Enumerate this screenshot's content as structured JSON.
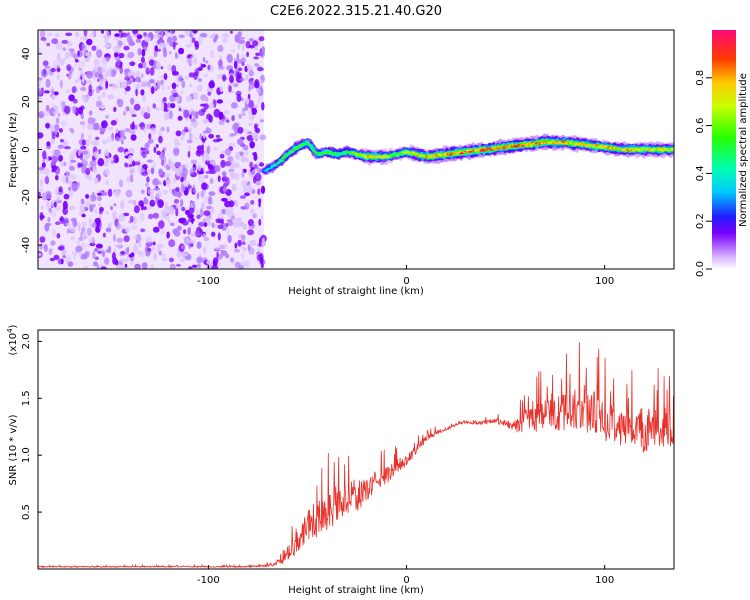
{
  "chart_data": [
    {
      "type": "heatmap",
      "title": "C2E6.2022.315.21.40.G20",
      "xlabel": "Height of straight line (km)",
      "ylabel": "Frequency (Hz)",
      "xlim": [
        -186,
        135
      ],
      "ylim": [
        -50,
        50
      ],
      "xticks": [
        -100,
        0,
        100
      ],
      "yticks": [
        -40,
        -20,
        0,
        20,
        40
      ],
      "colorbar": {
        "label": "Normalized spectral amplitude",
        "range": [
          0.0,
          1.0
        ],
        "ticks": [
          0.0,
          0.2,
          0.4,
          0.6,
          0.8
        ]
      },
      "noise_region_x": [
        -186,
        -72
      ],
      "ridge": {
        "x": [
          -72,
          -65,
          -60,
          -55,
          -50,
          -45,
          -40,
          -35,
          -30,
          -25,
          -20,
          -15,
          -10,
          -5,
          0,
          5,
          10,
          20,
          30,
          40,
          50,
          60,
          70,
          80,
          90,
          100,
          110,
          120,
          135
        ],
        "freq": [
          -9,
          -6,
          -2,
          1,
          3,
          -2,
          -1,
          -2,
          -1,
          -2,
          -3,
          -3,
          -3,
          -2,
          -1,
          -2,
          -3,
          -2,
          -1,
          0,
          1,
          2,
          3,
          3,
          2,
          1,
          0,
          0,
          0
        ],
        "amplitude": [
          0.3,
          0.45,
          0.55,
          0.6,
          0.5,
          0.55,
          0.6,
          0.55,
          0.5,
          0.65,
          0.75,
          0.8,
          0.7,
          0.6,
          0.7,
          0.75,
          0.8,
          0.85,
          0.9,
          0.9,
          0.85,
          0.9,
          0.85,
          0.8,
          0.75,
          0.8,
          0.8,
          0.75,
          0.7
        ]
      }
    },
    {
      "type": "line",
      "xlabel": "Height of straight line (km)",
      "ylabel": "SNR (10 * v/v)",
      "y_multiplier": "(x10",
      "y_multiplier_exp": "4",
      "y_multiplier_close": ")",
      "xlim": [
        -186,
        135
      ],
      "ylim": [
        0,
        2.1
      ],
      "xticks": [
        -100,
        0,
        100
      ],
      "yticks": [
        0.5,
        1.0,
        1.5,
        2.0
      ],
      "color": "#e8312a",
      "series": [
        {
          "x": [
            -186,
            -150,
            -100,
            -80,
            -70,
            -65,
            -60,
            -55,
            -50,
            -45,
            -40,
            -35,
            -30,
            -25,
            -20,
            -15,
            -10,
            -5,
            0,
            5,
            10,
            15,
            20,
            25,
            30,
            35,
            40,
            45,
            50,
            55,
            60,
            65,
            70,
            75,
            80,
            85,
            90,
            95,
            100,
            105,
            110,
            115,
            120,
            125,
            130,
            135
          ],
          "values": [
            0.02,
            0.02,
            0.02,
            0.02,
            0.03,
            0.05,
            0.1,
            0.25,
            0.4,
            0.45,
            0.5,
            0.55,
            0.6,
            0.62,
            0.7,
            0.78,
            0.82,
            0.9,
            0.95,
            1.05,
            1.15,
            1.2,
            1.23,
            1.27,
            1.29,
            1.28,
            1.29,
            1.3,
            1.28,
            1.25,
            1.3,
            1.32,
            1.35,
            1.35,
            1.38,
            1.4,
            1.4,
            1.38,
            1.3,
            1.28,
            1.25,
            1.22,
            1.2,
            1.25,
            1.2,
            1.2
          ],
          "noise_amplitude": [
            0.01,
            0.01,
            0.01,
            0.01,
            0.02,
            0.04,
            0.1,
            0.2,
            0.3,
            0.35,
            0.35,
            0.3,
            0.25,
            0.25,
            0.2,
            0.18,
            0.15,
            0.12,
            0.1,
            0.08,
            0.06,
            0.04,
            0.03,
            0.03,
            0.02,
            0.02,
            0.03,
            0.04,
            0.06,
            0.1,
            0.2,
            0.25,
            0.3,
            0.32,
            0.35,
            0.38,
            0.4,
            0.38,
            0.35,
            0.35,
            0.35,
            0.35,
            0.35,
            0.35,
            0.35,
            0.35
          ]
        }
      ]
    }
  ]
}
